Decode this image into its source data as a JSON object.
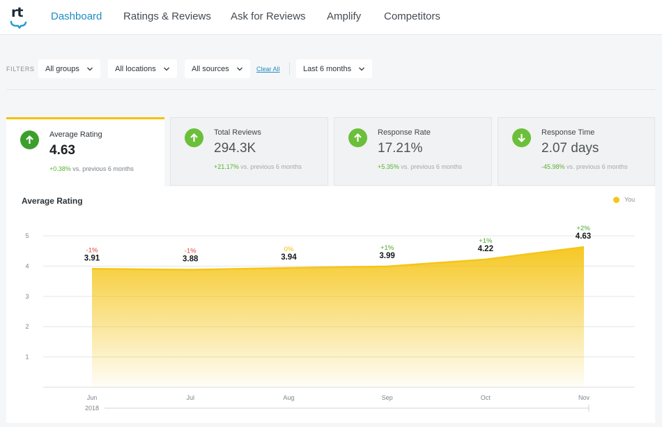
{
  "nav": {
    "logo": "rt",
    "tabs": [
      {
        "label": "Dashboard",
        "active": true
      },
      {
        "label": "Ratings & Reviews",
        "active": false
      },
      {
        "label": "Ask for Reviews",
        "active": false
      },
      {
        "label": "Amplify",
        "active": false
      },
      {
        "label": "Competitors",
        "active": false
      }
    ]
  },
  "filters": {
    "label": "FILTERS",
    "group": "All groups",
    "location": "All locations",
    "source": "All sources",
    "clear": "Clear All",
    "period": "Last 6 months"
  },
  "kpis": [
    {
      "label": "Average Rating",
      "value": "4.63",
      "delta": "+0.38%",
      "suffix": "vs. previous 6 months",
      "direction": "up",
      "active": true
    },
    {
      "label": "Total Reviews",
      "value": "294.3K",
      "delta": "+21.17%",
      "suffix": "vs. previous 6 months",
      "direction": "up",
      "active": false
    },
    {
      "label": "Response Rate",
      "value": "17.21%",
      "delta": "+5.35%",
      "suffix": "vs. previous 6 months",
      "direction": "up",
      "active": false
    },
    {
      "label": "Response Time",
      "value": "2.07 days",
      "delta": "-45.98%",
      "suffix": "vs. previous 6 months",
      "direction": "down",
      "active": false
    }
  ],
  "colors": {
    "accent": "#1f8cc4",
    "series": "#f5c518",
    "positive": "#4aa82a",
    "negative": "#e0463a",
    "neutral": "#f2c200"
  },
  "chart": {
    "title": "Average Rating",
    "legend": "You"
  },
  "chart_data": {
    "type": "area",
    "categories": [
      "Jun",
      "Jul",
      "Aug",
      "Sep",
      "Oct",
      "Nov"
    ],
    "year_label": "2018",
    "series": [
      {
        "name": "You",
        "values": [
          3.91,
          3.88,
          3.94,
          3.99,
          4.22,
          4.63
        ]
      }
    ],
    "value_labels": [
      "3.91",
      "3.88",
      "3.94",
      "3.99",
      "4.22",
      "4.63"
    ],
    "deltas": [
      "-1%",
      "-1%",
      "0%",
      "+1%",
      "+1%",
      "+2%"
    ],
    "delta_status": [
      "negative",
      "negative",
      "neutral",
      "positive",
      "positive",
      "positive"
    ],
    "yticks": [
      "1",
      "2",
      "3",
      "4",
      "5"
    ],
    "ylim": [
      0,
      5
    ],
    "grid": true,
    "legend_position": "top-right"
  }
}
